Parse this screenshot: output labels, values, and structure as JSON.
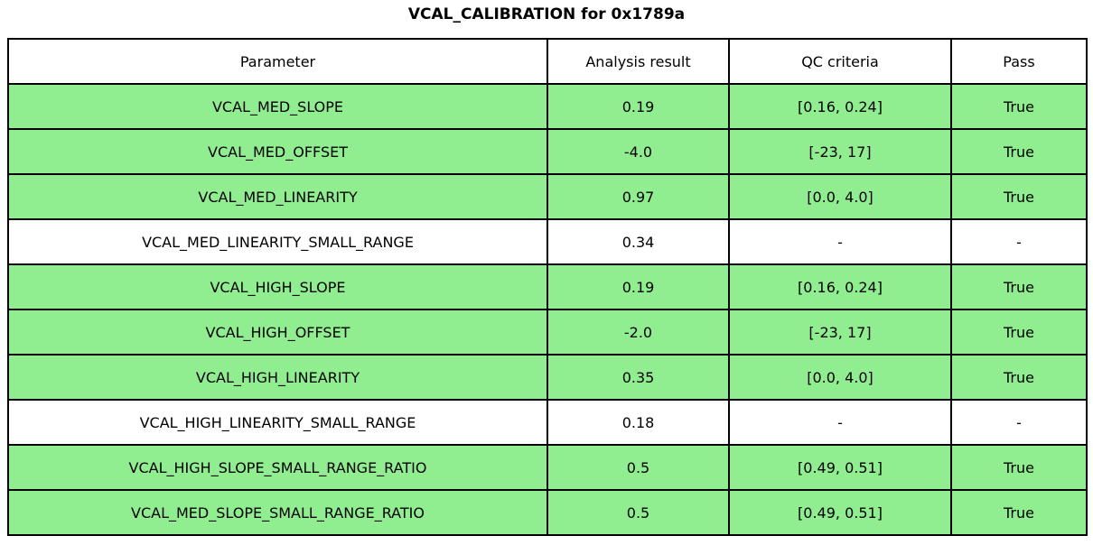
{
  "title": "VCAL_CALIBRATION for 0x1789a",
  "colors": {
    "pass_row_bg": "#90EE90",
    "neutral_row_bg": "#FFFFFF",
    "border": "#000000",
    "text": "#000000"
  },
  "chart_data": {
    "type": "table",
    "title": "VCAL_CALIBRATION for 0x1789a",
    "columns": [
      "Parameter",
      "Analysis result",
      "QC criteria",
      "Pass"
    ],
    "rows": [
      {
        "parameter": "VCAL_MED_SLOPE",
        "analysis_result": "0.19",
        "qc_criteria": "[0.16, 0.24]",
        "pass": "True",
        "highlight": true
      },
      {
        "parameter": "VCAL_MED_OFFSET",
        "analysis_result": "-4.0",
        "qc_criteria": "[-23, 17]",
        "pass": "True",
        "highlight": true
      },
      {
        "parameter": "VCAL_MED_LINEARITY",
        "analysis_result": "0.97",
        "qc_criteria": "[0.0, 4.0]",
        "pass": "True",
        "highlight": true
      },
      {
        "parameter": "VCAL_MED_LINEARITY_SMALL_RANGE",
        "analysis_result": "0.34",
        "qc_criteria": "-",
        "pass": "-",
        "highlight": false
      },
      {
        "parameter": "VCAL_HIGH_SLOPE",
        "analysis_result": "0.19",
        "qc_criteria": "[0.16, 0.24]",
        "pass": "True",
        "highlight": true
      },
      {
        "parameter": "VCAL_HIGH_OFFSET",
        "analysis_result": "-2.0",
        "qc_criteria": "[-23, 17]",
        "pass": "True",
        "highlight": true
      },
      {
        "parameter": "VCAL_HIGH_LINEARITY",
        "analysis_result": "0.35",
        "qc_criteria": "[0.0, 4.0]",
        "pass": "True",
        "highlight": true
      },
      {
        "parameter": "VCAL_HIGH_LINEARITY_SMALL_RANGE",
        "analysis_result": "0.18",
        "qc_criteria": "-",
        "pass": "-",
        "highlight": false
      },
      {
        "parameter": "VCAL_HIGH_SLOPE_SMALL_RANGE_RATIO",
        "analysis_result": "0.5",
        "qc_criteria": "[0.49, 0.51]",
        "pass": "True",
        "highlight": true
      },
      {
        "parameter": "VCAL_MED_SLOPE_SMALL_RANGE_RATIO",
        "analysis_result": "0.5",
        "qc_criteria": "[0.49, 0.51]",
        "pass": "True",
        "highlight": true
      }
    ]
  }
}
